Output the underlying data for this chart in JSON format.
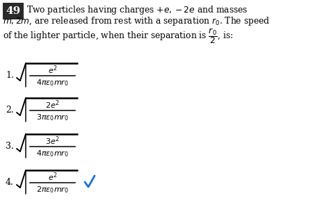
{
  "title_num": "49",
  "options": [
    {
      "num": "1.",
      "numerator": "$e^2$",
      "denominator": "$4\\pi\\varepsilon_0 mr_0$"
    },
    {
      "num": "2.",
      "numerator": "$2e^2$",
      "denominator": "$3\\pi\\varepsilon_0 mr_0$"
    },
    {
      "num": "3.",
      "numerator": "$3e^2$",
      "denominator": "$4\\pi\\varepsilon_0 mr_0$"
    },
    {
      "num": "4.",
      "numerator": "$e^2$",
      "denominator": "$2\\pi\\varepsilon_0 mr_0$"
    }
  ],
  "correct_option": 4,
  "bg_color": "#ffffff",
  "text_color": "#000000",
  "check_color": "#1a6fdf",
  "box_fill": "#2a2a2a",
  "q_line1": "Two particles having charges $+e, -2e$ and masses",
  "q_line2": "$m, 2m$, are released from rest with a separation $r_0$. The speed",
  "q_line3": "of the lighter particle, when their separation is $\\dfrac{r_0}{2}$, is:"
}
